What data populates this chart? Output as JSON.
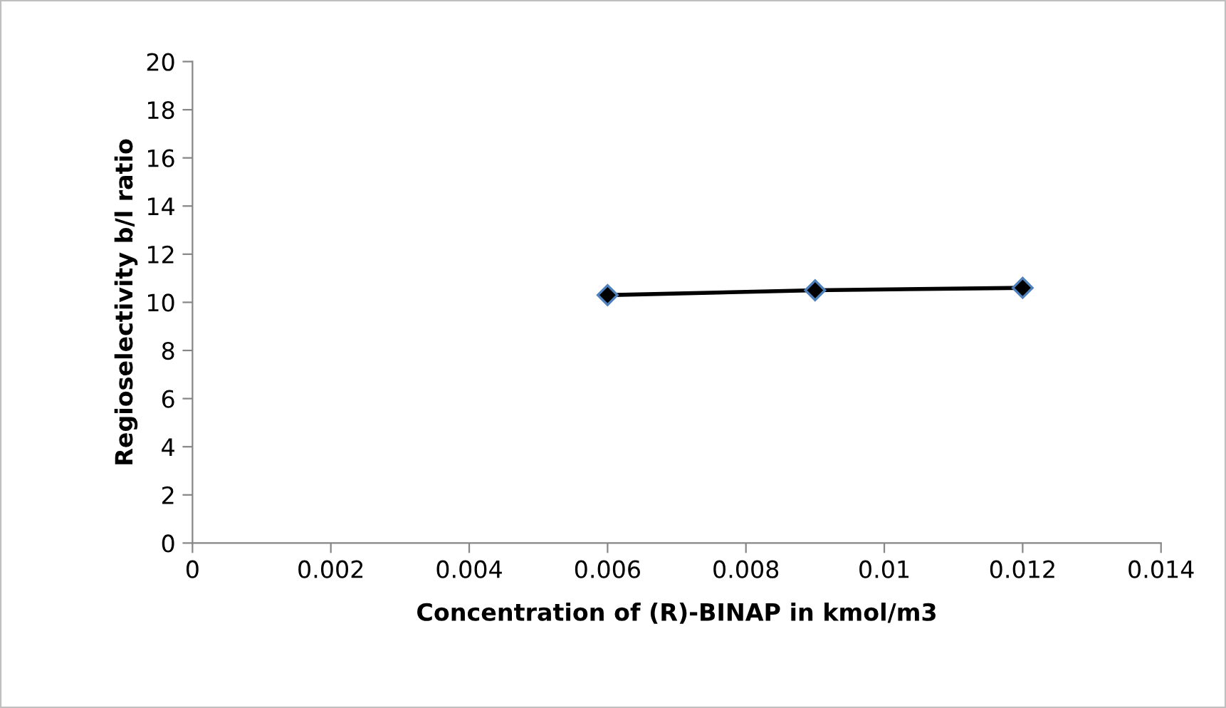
{
  "chart_data": {
    "type": "line",
    "xlabel": "Concentration of (R)-BINAP in kmol/m3",
    "ylabel": "Regioselectivity b/l ratio",
    "x": [
      0.006,
      0.009,
      0.012
    ],
    "series": [
      {
        "color": "#000000",
        "values": [
          10.3,
          10.5,
          10.6
        ]
      }
    ],
    "marker": "diamond",
    "line_style": "solid",
    "grid": false,
    "legend": false,
    "xlim": [
      0,
      0.014
    ],
    "xticks": [
      0,
      0.002,
      0.004,
      0.006,
      0.008,
      0.01,
      0.012,
      0.014
    ],
    "ylim": [
      0,
      20
    ],
    "yticks": [
      0,
      2,
      4,
      6,
      8,
      10,
      12,
      14,
      16,
      18,
      20
    ]
  }
}
